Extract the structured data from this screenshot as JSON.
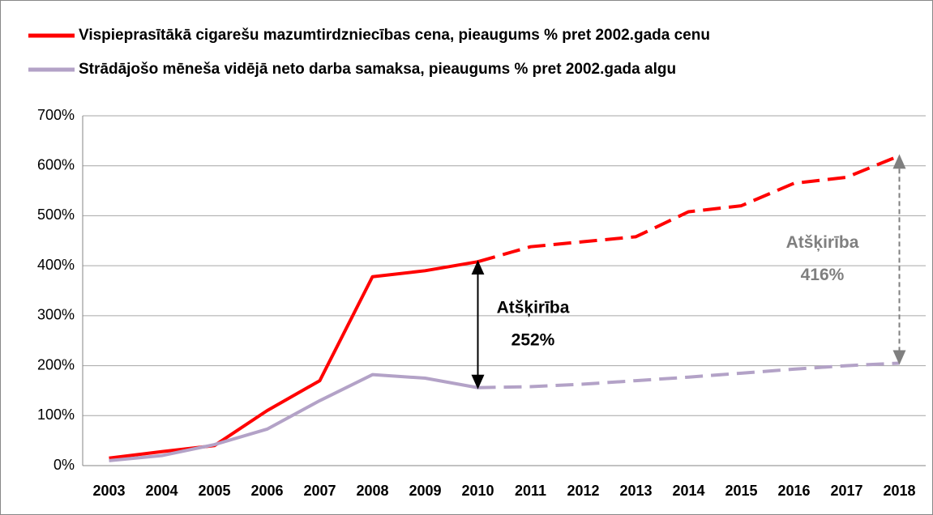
{
  "chart_data": {
    "type": "line",
    "categories": [
      "2003",
      "2004",
      "2005",
      "2006",
      "2007",
      "2008",
      "2009",
      "2010",
      "2011",
      "2012",
      "2013",
      "2014",
      "2015",
      "2016",
      "2017",
      "2018"
    ],
    "series": [
      {
        "name": "Vispieprasītākā cigarešu mazumtirdzniecības cena, pieaugums % pret 2002.gada cenu",
        "color": "#ff0000",
        "values": [
          15,
          28,
          40,
          110,
          170,
          378,
          390,
          408,
          438,
          448,
          458,
          508,
          520,
          565,
          577,
          620
        ]
      },
      {
        "name": "Strādājošo mēneša vidējā neto darba samaksa, pieaugums % pret 2002.gada algu",
        "color": "#b3a2c7",
        "values": [
          10,
          20,
          42,
          73,
          130,
          182,
          175,
          156,
          158,
          163,
          170,
          177,
          185,
          193,
          200,
          205
        ]
      }
    ],
    "dashed_after": "2010",
    "ylim": [
      0,
      700
    ],
    "yticks": [
      {
        "value": 0,
        "label": "0%"
      },
      {
        "value": 100,
        "label": "100%"
      },
      {
        "value": 200,
        "label": "200%"
      },
      {
        "value": 300,
        "label": "300%"
      },
      {
        "value": 400,
        "label": "400%"
      },
      {
        "value": 500,
        "label": "500%"
      },
      {
        "value": 600,
        "label": "600%"
      },
      {
        "value": 700,
        "label": "700%"
      }
    ],
    "grid": true,
    "annotations": [
      {
        "category": "2010",
        "lines": [
          "Atšķirība",
          "252%"
        ],
        "color": "#000000"
      },
      {
        "category": "2018",
        "lines": [
          "Atšķirība",
          "416%"
        ],
        "color": "#7f7f7f"
      }
    ]
  }
}
